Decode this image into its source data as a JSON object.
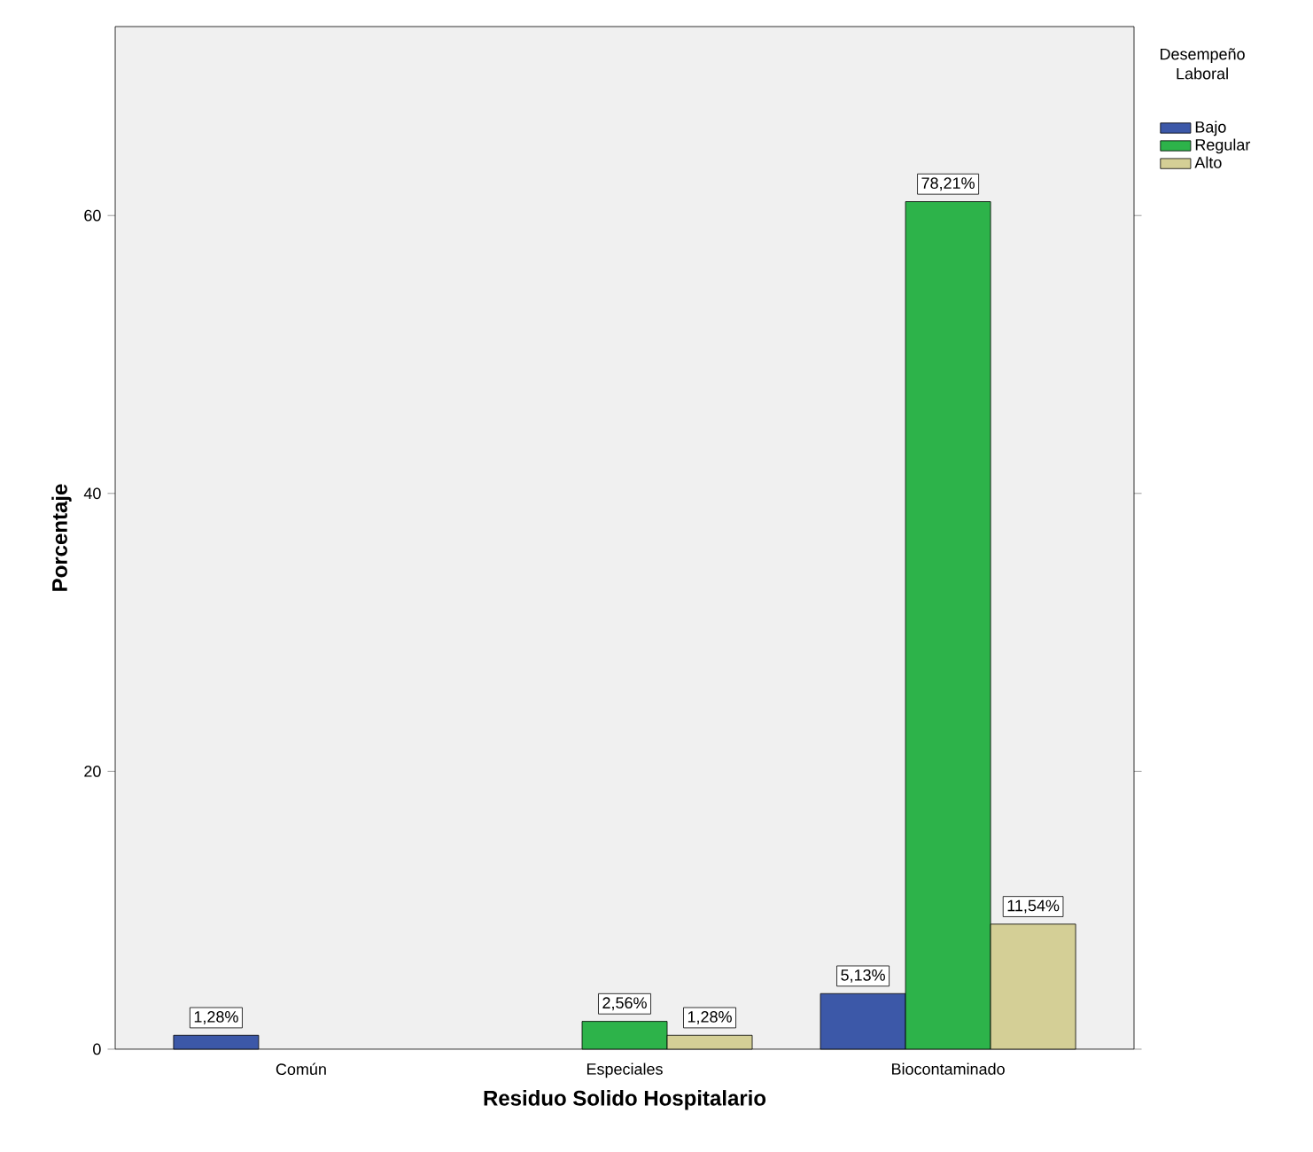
{
  "chart_data": {
    "type": "bar",
    "xlabel": "Residuo Solido Hospitalario",
    "ylabel": "Porcentaje",
    "legend_title": "Desempeño Laboral",
    "categories": [
      "Común",
      "Especiales",
      "Biocontaminado"
    ],
    "series": [
      {
        "name": "Bajo",
        "color": "#3c58a8",
        "values": [
          1,
          null,
          4
        ]
      },
      {
        "name": "Regular",
        "color": "#2db34a",
        "values": [
          null,
          2,
          61
        ]
      },
      {
        "name": "Alto",
        "color": "#d4cf96",
        "values": [
          null,
          1,
          9
        ]
      }
    ],
    "annotations": [
      "1,28%",
      "2,56%",
      "1,28%",
      "5,13%",
      "78,21%",
      "11,54%"
    ],
    "ylim": [
      0,
      73.6
    ],
    "yticks": [
      0,
      20,
      40,
      60
    ],
    "grid": false,
    "legend": "right"
  }
}
